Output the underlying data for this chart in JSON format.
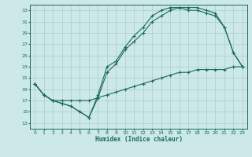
{
  "xlabel": "Humidex (Indice chaleur)",
  "bg_color": "#cce8e8",
  "grid_color": "#aacece",
  "line_color": "#1a6b5a",
  "xlim": [
    -0.5,
    23.5
  ],
  "ylim": [
    12,
    34
  ],
  "xticks": [
    0,
    1,
    2,
    3,
    4,
    5,
    6,
    7,
    8,
    9,
    10,
    11,
    12,
    13,
    14,
    15,
    16,
    17,
    18,
    19,
    20,
    21,
    22,
    23
  ],
  "yticks": [
    13,
    15,
    17,
    19,
    21,
    23,
    25,
    27,
    29,
    31,
    33
  ],
  "line1_x": [
    0,
    1,
    2,
    3,
    4,
    5,
    6,
    7,
    8,
    9,
    10,
    11,
    12,
    13,
    14,
    15,
    16,
    17,
    18,
    19,
    20,
    21,
    22,
    23
  ],
  "line1_y": [
    20,
    18,
    17,
    16.5,
    16,
    15,
    14,
    17.5,
    22,
    23.5,
    26,
    27.5,
    29,
    31,
    32,
    33,
    33.5,
    33.5,
    33.5,
    33,
    32.5,
    30,
    25.5,
    23
  ],
  "line2_x": [
    0,
    1,
    2,
    3,
    4,
    5,
    6,
    7,
    8,
    9,
    10,
    11,
    12,
    13,
    14,
    15,
    16,
    17,
    18,
    19,
    20,
    21,
    22,
    23
  ],
  "line2_y": [
    20,
    18,
    17,
    16.5,
    16,
    15,
    14,
    18,
    23,
    24,
    26.5,
    28.5,
    30,
    32,
    33,
    33.5,
    33.5,
    33,
    33,
    32.5,
    32,
    30,
    25.5,
    23
  ],
  "line3_x": [
    0,
    1,
    2,
    3,
    4,
    5,
    6,
    7,
    8,
    9,
    10,
    11,
    12,
    13,
    14,
    15,
    16,
    17,
    18,
    19,
    20,
    21,
    22,
    23
  ],
  "line3_y": [
    20,
    18,
    17,
    17,
    17,
    17,
    17,
    17.5,
    18,
    18.5,
    19,
    19.5,
    20,
    20.5,
    21,
    21.5,
    22,
    22,
    22.5,
    22.5,
    22.5,
    22.5,
    23,
    23
  ]
}
